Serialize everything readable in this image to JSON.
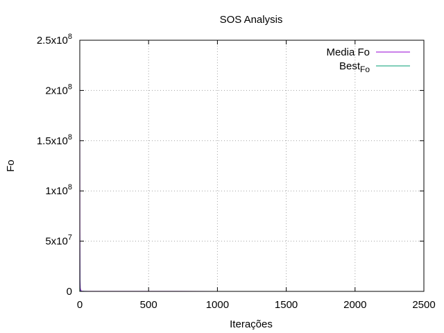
{
  "chart_data": {
    "type": "line",
    "title": "SOS Analysis",
    "xlabel": "Iterações",
    "ylabel": "Fo",
    "xlim": [
      0,
      2500
    ],
    "ylim": [
      0,
      250000000
    ],
    "grid": true,
    "legend_position": "top-right",
    "xticks": [
      {
        "value": 0,
        "label": "0"
      },
      {
        "value": 500,
        "label": "500"
      },
      {
        "value": 1000,
        "label": "1000"
      },
      {
        "value": 1500,
        "label": "1500"
      },
      {
        "value": 2000,
        "label": "2000"
      },
      {
        "value": 2500,
        "label": "2500"
      }
    ],
    "yticks": [
      {
        "value": 0,
        "mantissa": "0",
        "exp": ""
      },
      {
        "value": 50000000,
        "mantissa": "5x10",
        "exp": "7"
      },
      {
        "value": 100000000,
        "mantissa": "1x10",
        "exp": "8"
      },
      {
        "value": 150000000,
        "mantissa": "1.5x10",
        "exp": "8"
      },
      {
        "value": 200000000,
        "mantissa": "2x10",
        "exp": "8"
      },
      {
        "value": 250000000,
        "mantissa": "2.5x10",
        "exp": "8"
      }
    ],
    "series": [
      {
        "name": "Media Fo",
        "name_main": "Media Fo",
        "name_sub": "",
        "color": "#9400d3",
        "x": [
          0,
          1,
          2,
          4,
          8,
          15,
          30,
          60,
          120,
          250,
          500,
          1000,
          1500,
          2000,
          2400
        ],
        "y": [
          225000000,
          60000000,
          12000000,
          3000000,
          800000,
          300000,
          150000,
          90000,
          60000,
          50000,
          45000,
          42000,
          41000,
          40500,
          40000
        ]
      },
      {
        "name": "BestFo",
        "name_main": "Best",
        "name_sub": "Fo",
        "color": "#009e73",
        "x": [
          0,
          1,
          2,
          4,
          8,
          15,
          30,
          60,
          120,
          250,
          500,
          1000,
          1500,
          2000,
          2400
        ],
        "y": [
          60000000,
          5000000,
          1000000,
          300000,
          100000,
          60000,
          45000,
          40000,
          38000,
          37000,
          36500,
          36000,
          35800,
          35700,
          35600
        ]
      }
    ]
  }
}
